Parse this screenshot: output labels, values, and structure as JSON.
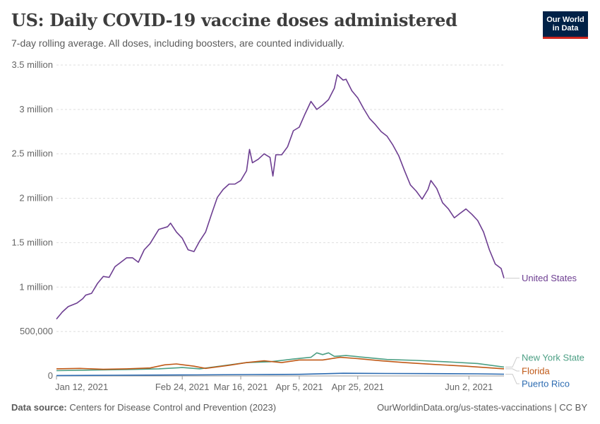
{
  "header": {
    "title": "US: Daily COVID-19 vaccine doses administered",
    "subtitle": "7-day rolling average. All doses, including boosters, are counted individually.",
    "logo_line1": "Our World",
    "logo_line2": "in Data"
  },
  "footer": {
    "source_label": "Data source:",
    "source_text": "Centers for Disease Control and Prevention (2023)",
    "link_text": "OurWorldinData.org/us-states-vaccinations",
    "license_text": "| CC BY"
  },
  "colors": {
    "United States": "#6d3e91",
    "New York State": "#4c9f84",
    "Florida": "#c05917",
    "Puerto Rico": "#2c6bb1",
    "grid": "#dddddd",
    "axis_text": "#666666"
  },
  "chart_data": {
    "type": "line",
    "x_start": "2021-01-12",
    "x_end": "2021-06-02",
    "ylim": [
      0,
      3500000
    ],
    "y_ticks": [
      {
        "value": 0,
        "label": "0"
      },
      {
        "value": 500000,
        "label": "500,000"
      },
      {
        "value": 1000000,
        "label": "1 million"
      },
      {
        "value": 1500000,
        "label": "1.5 million"
      },
      {
        "value": 2000000,
        "label": "2 million"
      },
      {
        "value": 2500000,
        "label": "2.5 million"
      },
      {
        "value": 3000000,
        "label": "3 million"
      },
      {
        "value": 3500000,
        "label": "3.5 million"
      }
    ],
    "x_ticks": [
      {
        "date": "2021-01-12",
        "label": "Jan 12, 2021"
      },
      {
        "date": "2021-02-24",
        "label": "Feb 24, 2021"
      },
      {
        "date": "2021-03-16",
        "label": "Mar 16, 2021"
      },
      {
        "date": "2021-04-05",
        "label": "Apr 5, 2021"
      },
      {
        "date": "2021-04-25",
        "label": "Apr 25, 2021"
      },
      {
        "date": "2021-06-02",
        "label": "Jun 2, 2021"
      }
    ],
    "grid": true,
    "series": [
      {
        "name": "United States",
        "points": [
          [
            "2021-01-12",
            640000
          ],
          [
            "2021-01-14",
            720000
          ],
          [
            "2021-01-16",
            780000
          ],
          [
            "2021-01-19",
            820000
          ],
          [
            "2021-01-21",
            870000
          ],
          [
            "2021-01-22",
            910000
          ],
          [
            "2021-01-24",
            930000
          ],
          [
            "2021-01-26",
            1040000
          ],
          [
            "2021-01-28",
            1120000
          ],
          [
            "2021-01-30",
            1110000
          ],
          [
            "2021-02-01",
            1230000
          ],
          [
            "2021-02-03",
            1280000
          ],
          [
            "2021-02-05",
            1330000
          ],
          [
            "2021-02-07",
            1330000
          ],
          [
            "2021-02-09",
            1280000
          ],
          [
            "2021-02-11",
            1420000
          ],
          [
            "2021-02-13",
            1490000
          ],
          [
            "2021-02-16",
            1650000
          ],
          [
            "2021-02-19",
            1680000
          ],
          [
            "2021-02-20",
            1720000
          ],
          [
            "2021-02-22",
            1620000
          ],
          [
            "2021-02-24",
            1550000
          ],
          [
            "2021-02-26",
            1420000
          ],
          [
            "2021-02-28",
            1400000
          ],
          [
            "2021-03-02",
            1520000
          ],
          [
            "2021-03-04",
            1620000
          ],
          [
            "2021-03-06",
            1820000
          ],
          [
            "2021-03-08",
            2010000
          ],
          [
            "2021-03-10",
            2100000
          ],
          [
            "2021-03-12",
            2160000
          ],
          [
            "2021-03-14",
            2160000
          ],
          [
            "2021-03-16",
            2200000
          ],
          [
            "2021-03-18",
            2310000
          ],
          [
            "2021-03-19",
            2550000
          ],
          [
            "2021-03-20",
            2400000
          ],
          [
            "2021-03-22",
            2440000
          ],
          [
            "2021-03-24",
            2500000
          ],
          [
            "2021-03-26",
            2460000
          ],
          [
            "2021-03-27",
            2250000
          ],
          [
            "2021-03-28",
            2490000
          ],
          [
            "2021-03-30",
            2490000
          ],
          [
            "2021-04-01",
            2580000
          ],
          [
            "2021-04-03",
            2760000
          ],
          [
            "2021-04-05",
            2800000
          ],
          [
            "2021-04-07",
            2950000
          ],
          [
            "2021-04-09",
            3090000
          ],
          [
            "2021-04-11",
            3000000
          ],
          [
            "2021-04-13",
            3050000
          ],
          [
            "2021-04-15",
            3110000
          ],
          [
            "2021-04-17",
            3240000
          ],
          [
            "2021-04-18",
            3390000
          ],
          [
            "2021-04-20",
            3330000
          ],
          [
            "2021-04-21",
            3340000
          ],
          [
            "2021-04-23",
            3210000
          ],
          [
            "2021-04-25",
            3130000
          ],
          [
            "2021-04-27",
            3010000
          ],
          [
            "2021-04-29",
            2900000
          ],
          [
            "2021-05-01",
            2830000
          ],
          [
            "2021-05-03",
            2750000
          ],
          [
            "2021-05-05",
            2700000
          ],
          [
            "2021-05-07",
            2600000
          ],
          [
            "2021-05-09",
            2480000
          ],
          [
            "2021-05-11",
            2310000
          ],
          [
            "2021-05-13",
            2150000
          ],
          [
            "2021-05-15",
            2080000
          ],
          [
            "2021-05-17",
            1990000
          ],
          [
            "2021-05-19",
            2100000
          ],
          [
            "2021-05-20",
            2200000
          ],
          [
            "2021-05-22",
            2110000
          ],
          [
            "2021-05-24",
            1950000
          ],
          [
            "2021-05-26",
            1880000
          ],
          [
            "2021-05-28",
            1780000
          ],
          [
            "2021-05-30",
            1830000
          ],
          [
            "2021-06-01",
            1880000
          ],
          [
            "2021-06-03",
            1820000
          ],
          [
            "2021-06-05",
            1750000
          ],
          [
            "2021-06-07",
            1620000
          ],
          [
            "2021-06-09",
            1420000
          ],
          [
            "2021-06-11",
            1260000
          ],
          [
            "2021-06-13",
            1210000
          ],
          [
            "2021-06-14",
            1100000
          ]
        ]
      },
      {
        "name": "New York State",
        "points": [
          [
            "2021-01-12",
            60000
          ],
          [
            "2021-01-22",
            65000
          ],
          [
            "2021-02-05",
            72000
          ],
          [
            "2021-02-16",
            80000
          ],
          [
            "2021-02-24",
            95000
          ],
          [
            "2021-03-02",
            80000
          ],
          [
            "2021-03-10",
            115000
          ],
          [
            "2021-03-18",
            150000
          ],
          [
            "2021-03-26",
            160000
          ],
          [
            "2021-04-03",
            190000
          ],
          [
            "2021-04-09",
            210000
          ],
          [
            "2021-04-11",
            260000
          ],
          [
            "2021-04-13",
            240000
          ],
          [
            "2021-04-15",
            260000
          ],
          [
            "2021-04-17",
            220000
          ],
          [
            "2021-04-21",
            230000
          ],
          [
            "2021-04-27",
            210000
          ],
          [
            "2021-05-05",
            185000
          ],
          [
            "2021-05-15",
            175000
          ],
          [
            "2021-05-25",
            160000
          ],
          [
            "2021-06-05",
            140000
          ],
          [
            "2021-06-14",
            100000
          ]
        ]
      },
      {
        "name": "Florida",
        "points": [
          [
            "2021-01-12",
            80000
          ],
          [
            "2021-01-20",
            85000
          ],
          [
            "2021-01-28",
            75000
          ],
          [
            "2021-02-05",
            80000
          ],
          [
            "2021-02-13",
            90000
          ],
          [
            "2021-02-18",
            125000
          ],
          [
            "2021-02-22",
            135000
          ],
          [
            "2021-02-28",
            110000
          ],
          [
            "2021-03-04",
            85000
          ],
          [
            "2021-03-12",
            120000
          ],
          [
            "2021-03-18",
            150000
          ],
          [
            "2021-03-24",
            170000
          ],
          [
            "2021-03-30",
            150000
          ],
          [
            "2021-04-05",
            180000
          ],
          [
            "2021-04-13",
            180000
          ],
          [
            "2021-04-19",
            210000
          ],
          [
            "2021-04-25",
            195000
          ],
          [
            "2021-05-03",
            170000
          ],
          [
            "2021-05-11",
            150000
          ],
          [
            "2021-05-21",
            130000
          ],
          [
            "2021-06-01",
            110000
          ],
          [
            "2021-06-14",
            80000
          ]
        ]
      },
      {
        "name": "Puerto Rico",
        "points": [
          [
            "2021-01-12",
            5000
          ],
          [
            "2021-02-01",
            8000
          ],
          [
            "2021-03-01",
            12000
          ],
          [
            "2021-03-20",
            16000
          ],
          [
            "2021-04-05",
            18000
          ],
          [
            "2021-04-20",
            30000
          ],
          [
            "2021-05-05",
            28000
          ],
          [
            "2021-05-20",
            26000
          ],
          [
            "2021-06-05",
            24000
          ],
          [
            "2021-06-14",
            20000
          ]
        ]
      }
    ]
  }
}
